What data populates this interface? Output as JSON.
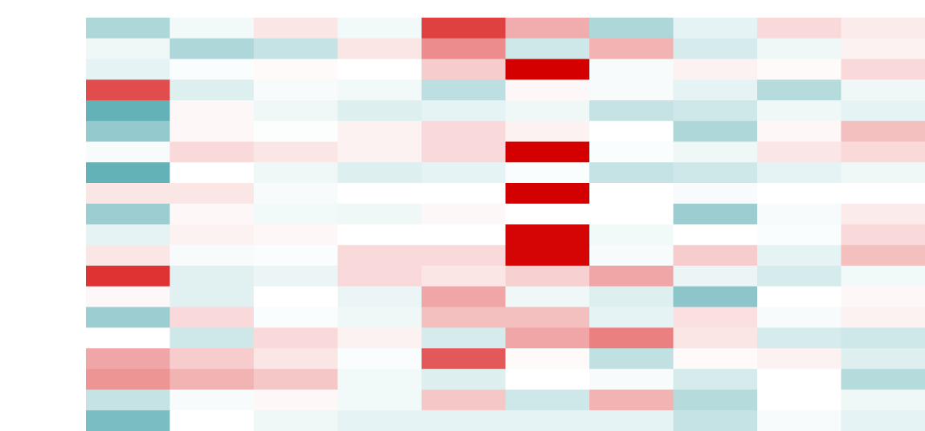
{
  "chart_data": {
    "type": "heatmap",
    "title": "",
    "xlabel": "",
    "ylabel": "",
    "n_rows": 20,
    "n_cols": 10,
    "value_range": [
      -1,
      1
    ],
    "color_scale": {
      "negative": "#5aaeb3",
      "zero": "#ffffff",
      "positive": "#d40000"
    },
    "grid": false,
    "values": [
      [
        -0.5,
        -0.08,
        0.1,
        -0.08,
        0.75,
        0.32,
        -0.5,
        -0.15,
        0.15,
        0.08
      ],
      [
        -0.1,
        -0.5,
        -0.35,
        0.1,
        0.45,
        -0.3,
        0.3,
        -0.25,
        -0.1,
        0.05
      ],
      [
        -0.15,
        -0.03,
        0.02,
        0.0,
        0.2,
        1.0,
        -0.05,
        0.05,
        0.02,
        0.15
      ],
      [
        0.7,
        -0.2,
        -0.05,
        -0.08,
        -0.4,
        0.03,
        -0.05,
        -0.15,
        -0.45,
        -0.1
      ],
      [
        -0.95,
        0.03,
        -0.1,
        -0.2,
        -0.15,
        -0.1,
        -0.35,
        -0.3,
        -0.1,
        -0.15
      ],
      [
        -0.65,
        0.03,
        -0.02,
        0.05,
        0.15,
        0.05,
        0.0,
        -0.5,
        0.03,
        0.25
      ],
      [
        -0.05,
        0.15,
        0.1,
        0.05,
        0.15,
        1.0,
        -0.03,
        -0.1,
        0.1,
        0.15
      ],
      [
        -0.95,
        0.0,
        -0.1,
        -0.2,
        -0.15,
        -0.03,
        -0.35,
        -0.3,
        -0.15,
        -0.1
      ],
      [
        0.1,
        0.1,
        -0.05,
        0.0,
        0.0,
        1.0,
        0.0,
        -0.05,
        0.0,
        0.0
      ],
      [
        -0.6,
        0.03,
        -0.08,
        -0.1,
        0.03,
        0.0,
        0.0,
        -0.6,
        -0.05,
        0.08
      ],
      [
        -0.15,
        0.05,
        0.03,
        0.0,
        0.0,
        0.98,
        -0.08,
        0.0,
        -0.03,
        0.15
      ],
      [
        0.1,
        -0.05,
        -0.03,
        0.15,
        0.15,
        0.98,
        -0.05,
        0.2,
        -0.15,
        0.25
      ],
      [
        0.8,
        -0.18,
        -0.12,
        0.15,
        0.1,
        0.18,
        0.35,
        -0.12,
        -0.25,
        -0.08
      ],
      [
        0.03,
        -0.18,
        0.0,
        -0.12,
        0.35,
        -0.1,
        -0.2,
        -0.7,
        0.0,
        0.03
      ],
      [
        -0.6,
        0.15,
        -0.03,
        -0.1,
        0.25,
        0.25,
        -0.15,
        0.12,
        -0.05,
        0.05
      ],
      [
        0.0,
        -0.3,
        0.15,
        0.05,
        -0.25,
        0.35,
        0.5,
        0.1,
        -0.25,
        -0.3
      ],
      [
        0.35,
        0.2,
        0.1,
        -0.03,
        0.65,
        0.02,
        -0.38,
        0.02,
        0.05,
        -0.2
      ],
      [
        0.42,
        0.3,
        0.22,
        -0.08,
        -0.2,
        0.0,
        -0.05,
        -0.25,
        0.0,
        -0.45
      ],
      [
        -0.35,
        -0.05,
        0.03,
        -0.08,
        0.22,
        -0.3,
        0.3,
        -0.45,
        0.0,
        -0.1
      ],
      [
        -0.8,
        0.0,
        -0.1,
        -0.15,
        -0.15,
        -0.15,
        -0.15,
        -0.35,
        -0.05,
        -0.15
      ]
    ]
  }
}
